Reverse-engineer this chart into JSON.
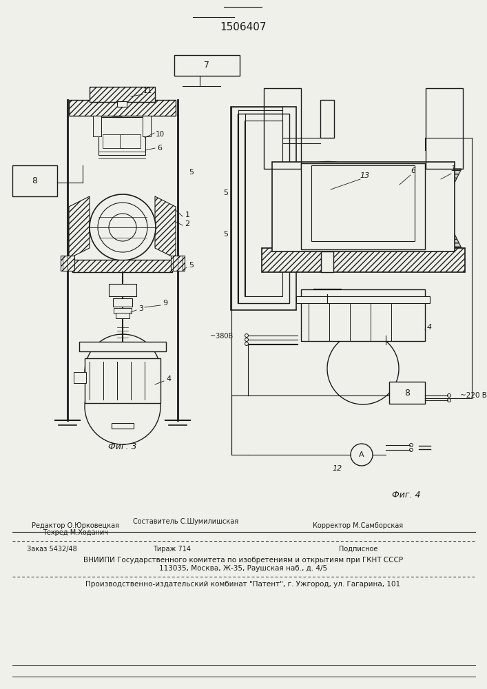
{
  "patent_number": "1506407",
  "fig3_label": "Фиг. 3",
  "fig4_label": "Фиг. 4",
  "footer_line1_left": "Редактор О.Юрковецкая",
  "footer_line1_mid": "Составитель С.Шумилишская",
  "footer_line1b_mid": "Техред М.Ходанич",
  "footer_line1_right": "Корректор М.Самборская",
  "footer_line2_left": "Заказ 5432/48",
  "footer_line2_mid": "Тираж 714",
  "footer_line2_right": "Подписное",
  "footer_line3": "ВНИИПИ Государственного комитета по изобретениям и открытиям при ГКНТ СССР",
  "footer_line4": "113035, Москва, Ж-35, Раушская наб., д. 4/5",
  "footer_line5": "Производственно-издательский комбинат \"Патент\", г. Ужгород, ул. Гагарина, 101",
  "bg_color": "#f0f0eb",
  "line_color": "#1a1a1a"
}
